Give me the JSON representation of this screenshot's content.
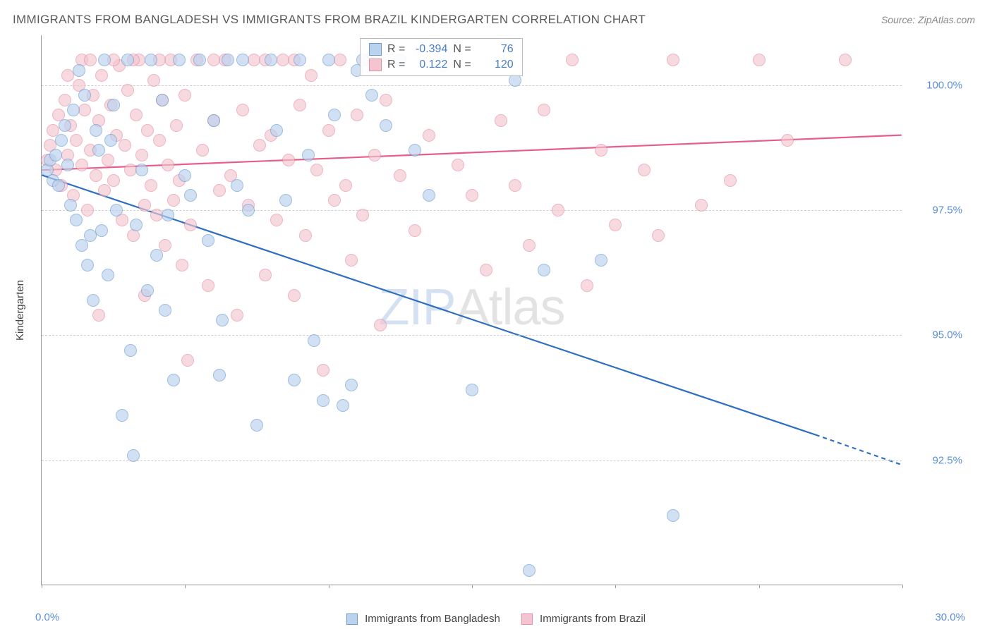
{
  "title": "IMMIGRANTS FROM BANGLADESH VS IMMIGRANTS FROM BRAZIL KINDERGARTEN CORRELATION CHART",
  "source": "Source: ZipAtlas.com",
  "watermark_zip": "ZIP",
  "watermark_atlas": "Atlas",
  "y_axis_label": "Kindergarten",
  "x_label_min": "0.0%",
  "x_label_max": "30.0%",
  "chart": {
    "type": "scatter",
    "xlim": [
      0,
      30
    ],
    "ylim": [
      90,
      101
    ],
    "x_tick_positions": [
      0,
      5,
      10,
      15,
      20,
      25,
      30
    ],
    "y_ticks": [
      {
        "v": 92.5,
        "label": "92.5%"
      },
      {
        "v": 95.0,
        "label": "95.0%"
      },
      {
        "v": 97.5,
        "label": "97.5%"
      },
      {
        "v": 100.0,
        "label": "100.0%"
      }
    ],
    "grid_color": "#d0d0d0",
    "background_color": "#ffffff",
    "series": [
      {
        "key": "bangladesh",
        "label": "Immigrants from Bangladesh",
        "fill": "#b9d2ee",
        "stroke": "#6b9bd1",
        "line_color": "#2e6fc0",
        "r_label": "R =",
        "r_value": "-0.394",
        "n_label": "N =",
        "n_value": "76",
        "regression": {
          "x1": 0,
          "y1": 98.2,
          "x2": 27,
          "y2": 93.0,
          "dash_x2": 30,
          "dash_y2": 92.4
        },
        "points": [
          [
            0.2,
            98.3
          ],
          [
            0.3,
            98.5
          ],
          [
            0.4,
            98.1
          ],
          [
            0.5,
            98.6
          ],
          [
            0.6,
            98.0
          ],
          [
            0.7,
            98.9
          ],
          [
            0.8,
            99.2
          ],
          [
            0.9,
            98.4
          ],
          [
            1.0,
            97.6
          ],
          [
            1.1,
            99.5
          ],
          [
            1.2,
            97.3
          ],
          [
            1.3,
            100.3
          ],
          [
            1.4,
            96.8
          ],
          [
            1.5,
            99.8
          ],
          [
            1.6,
            96.4
          ],
          [
            1.7,
            97.0
          ],
          [
            1.8,
            95.7
          ],
          [
            1.9,
            99.1
          ],
          [
            2.0,
            98.7
          ],
          [
            2.1,
            97.1
          ],
          [
            2.2,
            100.5
          ],
          [
            2.3,
            96.2
          ],
          [
            2.4,
            98.9
          ],
          [
            2.5,
            99.6
          ],
          [
            2.6,
            97.5
          ],
          [
            2.8,
            93.4
          ],
          [
            3.0,
            100.5
          ],
          [
            3.1,
            94.7
          ],
          [
            3.2,
            92.6
          ],
          [
            3.3,
            97.2
          ],
          [
            3.5,
            98.3
          ],
          [
            3.7,
            95.9
          ],
          [
            3.8,
            100.5
          ],
          [
            4.0,
            96.6
          ],
          [
            4.2,
            99.7
          ],
          [
            4.4,
            97.4
          ],
          [
            4.6,
            94.1
          ],
          [
            4.8,
            100.5
          ],
          [
            5.0,
            98.2
          ],
          [
            5.2,
            97.8
          ],
          [
            5.5,
            100.5
          ],
          [
            5.8,
            96.9
          ],
          [
            6.0,
            99.3
          ],
          [
            6.2,
            94.2
          ],
          [
            6.5,
            100.5
          ],
          [
            6.8,
            98.0
          ],
          [
            7.0,
            100.5
          ],
          [
            7.2,
            97.5
          ],
          [
            7.5,
            93.2
          ],
          [
            8.0,
            100.5
          ],
          [
            8.2,
            99.1
          ],
          [
            8.5,
            97.7
          ],
          [
            8.8,
            94.1
          ],
          [
            9.0,
            100.5
          ],
          [
            9.3,
            98.6
          ],
          [
            9.5,
            94.9
          ],
          [
            9.8,
            93.7
          ],
          [
            10.0,
            100.5
          ],
          [
            10.2,
            99.4
          ],
          [
            10.5,
            93.6
          ],
          [
            11.0,
            100.3
          ],
          [
            11.2,
            100.5
          ],
          [
            11.5,
            99.8
          ],
          [
            12.0,
            99.2
          ],
          [
            12.5,
            100.5
          ],
          [
            13.0,
            98.7
          ],
          [
            13.5,
            97.8
          ],
          [
            15.0,
            93.9
          ],
          [
            16.5,
            100.1
          ],
          [
            17.0,
            90.3
          ],
          [
            17.5,
            96.3
          ],
          [
            19.5,
            96.5
          ],
          [
            22.0,
            91.4
          ],
          [
            10.8,
            94.0
          ],
          [
            6.3,
            95.3
          ],
          [
            4.3,
            95.5
          ]
        ]
      },
      {
        "key": "brazil",
        "label": "Immigrants from Brazil",
        "fill": "#f4c5d0",
        "stroke": "#e48fa5",
        "line_color": "#e75d8a",
        "r_label": "R =",
        "r_value": "0.122",
        "n_label": "N =",
        "n_value": "120",
        "regression": {
          "x1": 0,
          "y1": 98.3,
          "x2": 30,
          "y2": 99.0
        },
        "points": [
          [
            0.2,
            98.5
          ],
          [
            0.3,
            98.8
          ],
          [
            0.4,
            99.1
          ],
          [
            0.5,
            98.3
          ],
          [
            0.6,
            99.4
          ],
          [
            0.7,
            98.0
          ],
          [
            0.8,
            99.7
          ],
          [
            0.9,
            98.6
          ],
          [
            1.0,
            99.2
          ],
          [
            1.1,
            97.8
          ],
          [
            1.2,
            98.9
          ],
          [
            1.3,
            100.0
          ],
          [
            1.4,
            98.4
          ],
          [
            1.5,
            99.5
          ],
          [
            1.6,
            97.5
          ],
          [
            1.7,
            98.7
          ],
          [
            1.8,
            99.8
          ],
          [
            1.9,
            98.2
          ],
          [
            2.0,
            99.3
          ],
          [
            2.1,
            100.2
          ],
          [
            2.2,
            97.9
          ],
          [
            2.3,
            98.5
          ],
          [
            2.4,
            99.6
          ],
          [
            2.5,
            98.1
          ],
          [
            2.6,
            99.0
          ],
          [
            2.7,
            100.4
          ],
          [
            2.8,
            97.3
          ],
          [
            2.9,
            98.8
          ],
          [
            3.0,
            99.9
          ],
          [
            3.1,
            98.3
          ],
          [
            3.2,
            97.0
          ],
          [
            3.3,
            99.4
          ],
          [
            3.4,
            100.5
          ],
          [
            3.5,
            98.6
          ],
          [
            3.6,
            97.6
          ],
          [
            3.7,
            99.1
          ],
          [
            3.8,
            98.0
          ],
          [
            3.9,
            100.1
          ],
          [
            4.0,
            97.4
          ],
          [
            4.1,
            98.9
          ],
          [
            4.2,
            99.7
          ],
          [
            4.3,
            96.8
          ],
          [
            4.4,
            98.4
          ],
          [
            4.5,
            100.5
          ],
          [
            4.6,
            97.7
          ],
          [
            4.7,
            99.2
          ],
          [
            4.8,
            98.1
          ],
          [
            4.9,
            96.4
          ],
          [
            5.0,
            99.8
          ],
          [
            5.2,
            97.2
          ],
          [
            5.4,
            100.5
          ],
          [
            5.6,
            98.7
          ],
          [
            5.8,
            96.0
          ],
          [
            6.0,
            99.3
          ],
          [
            6.2,
            97.9
          ],
          [
            6.4,
            100.5
          ],
          [
            6.6,
            98.2
          ],
          [
            6.8,
            95.4
          ],
          [
            7.0,
            99.5
          ],
          [
            7.2,
            97.6
          ],
          [
            7.4,
            100.5
          ],
          [
            7.6,
            98.8
          ],
          [
            7.8,
            96.2
          ],
          [
            8.0,
            99.0
          ],
          [
            8.2,
            97.3
          ],
          [
            8.4,
            100.5
          ],
          [
            8.6,
            98.5
          ],
          [
            8.8,
            95.8
          ],
          [
            9.0,
            99.6
          ],
          [
            9.2,
            97.0
          ],
          [
            9.4,
            100.2
          ],
          [
            9.6,
            98.3
          ],
          [
            9.8,
            94.3
          ],
          [
            10.0,
            99.1
          ],
          [
            10.2,
            97.7
          ],
          [
            10.4,
            100.5
          ],
          [
            10.6,
            98.0
          ],
          [
            10.8,
            96.5
          ],
          [
            11.0,
            99.4
          ],
          [
            11.2,
            97.4
          ],
          [
            11.4,
            100.5
          ],
          [
            11.6,
            98.6
          ],
          [
            11.8,
            95.2
          ],
          [
            12.0,
            99.7
          ],
          [
            12.5,
            98.2
          ],
          [
            13.0,
            97.1
          ],
          [
            13.5,
            99.0
          ],
          [
            14.0,
            100.4
          ],
          [
            14.5,
            98.4
          ],
          [
            15.0,
            97.8
          ],
          [
            15.5,
            96.3
          ],
          [
            16.0,
            99.3
          ],
          [
            16.5,
            98.0
          ],
          [
            17.0,
            96.8
          ],
          [
            17.5,
            99.5
          ],
          [
            18.0,
            97.5
          ],
          [
            18.5,
            100.5
          ],
          [
            19.0,
            96.0
          ],
          [
            19.5,
            98.7
          ],
          [
            20.0,
            97.2
          ],
          [
            21.0,
            98.3
          ],
          [
            21.5,
            97.0
          ],
          [
            22.0,
            100.5
          ],
          [
            23.0,
            97.6
          ],
          [
            24.0,
            98.1
          ],
          [
            25.0,
            100.5
          ],
          [
            26.0,
            98.9
          ],
          [
            28.0,
            100.5
          ],
          [
            2.0,
            95.4
          ],
          [
            3.6,
            95.8
          ],
          [
            5.1,
            94.5
          ],
          [
            1.4,
            100.5
          ],
          [
            0.9,
            100.2
          ],
          [
            1.7,
            100.5
          ],
          [
            6.0,
            100.5
          ],
          [
            7.8,
            100.5
          ],
          [
            4.1,
            100.5
          ],
          [
            3.2,
            100.5
          ],
          [
            2.5,
            100.5
          ],
          [
            8.8,
            100.5
          ]
        ]
      }
    ]
  },
  "legend_bottom": {
    "items": [
      {
        "series": "bangladesh"
      },
      {
        "series": "brazil"
      }
    ]
  }
}
